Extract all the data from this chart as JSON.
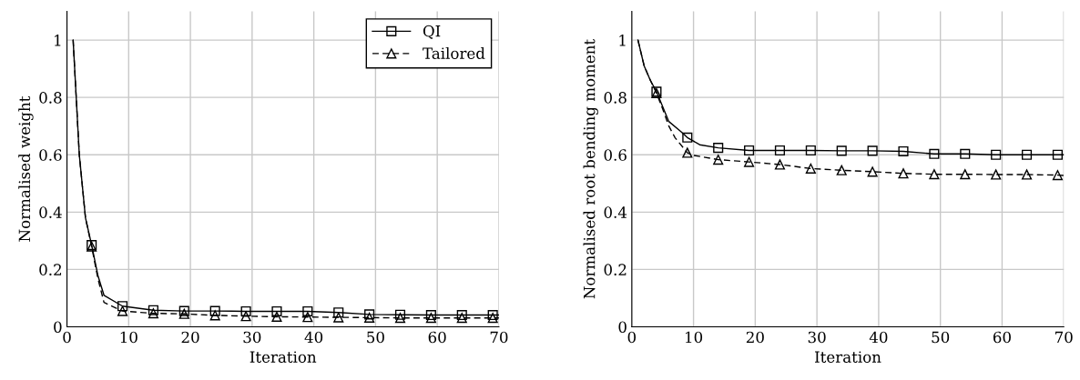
{
  "chart_data": [
    {
      "type": "line",
      "xlabel": "Iteration",
      "ylabel": "Normalised weight",
      "xlim": [
        0,
        70
      ],
      "ylim": [
        0,
        1.1
      ],
      "xticks": [
        0,
        10,
        20,
        30,
        40,
        50,
        60,
        70
      ],
      "yticks": [
        0,
        0.2,
        0.4,
        0.6,
        0.8,
        1
      ],
      "grid": true,
      "legend": "top right",
      "series": [
        {
          "name": "QI",
          "color": "#000000",
          "marker": "square",
          "line_style": "solid",
          "x": [
            1,
            2,
            3,
            4,
            5,
            6,
            9,
            14,
            19,
            24,
            29,
            34,
            39,
            44,
            49,
            54,
            59,
            64,
            69,
            70
          ],
          "values": [
            1.0,
            0.6,
            0.38,
            0.285,
            0.18,
            0.11,
            0.072,
            0.058,
            0.055,
            0.055,
            0.054,
            0.054,
            0.054,
            0.05,
            0.043,
            0.042,
            0.041,
            0.041,
            0.041,
            0.041
          ]
        },
        {
          "name": "Tailored",
          "color": "#000000",
          "marker": "triangle",
          "line_style": "dashed",
          "x": [
            1,
            2,
            3,
            4,
            5,
            6,
            9,
            14,
            19,
            24,
            29,
            34,
            39,
            44,
            49,
            54,
            59,
            64,
            69,
            70
          ],
          "values": [
            1.0,
            0.6,
            0.38,
            0.28,
            0.17,
            0.085,
            0.055,
            0.047,
            0.045,
            0.04,
            0.037,
            0.035,
            0.034,
            0.033,
            0.032,
            0.031,
            0.031,
            0.031,
            0.031,
            0.031
          ]
        }
      ]
    },
    {
      "type": "line",
      "xlabel": "Iteration",
      "ylabel": "Normalised root bending moment",
      "xlim": [
        0,
        70
      ],
      "ylim": [
        0,
        1.1
      ],
      "xticks": [
        0,
        10,
        20,
        30,
        40,
        50,
        60,
        70
      ],
      "yticks": [
        0,
        0.2,
        0.4,
        0.6,
        0.8,
        1
      ],
      "grid": true,
      "series": [
        {
          "color": "#000000",
          "marker": "square",
          "line_style": "solid",
          "x": [
            1,
            2,
            3,
            4,
            6,
            8,
            9,
            11,
            14,
            19,
            24,
            29,
            34,
            39,
            44,
            49,
            54,
            59,
            64,
            69,
            70
          ],
          "values": [
            1.0,
            0.91,
            0.86,
            0.82,
            0.716,
            0.68,
            0.66,
            0.635,
            0.624,
            0.615,
            0.615,
            0.615,
            0.614,
            0.614,
            0.612,
            0.603,
            0.603,
            0.6,
            0.6,
            0.6,
            0.6
          ]
        },
        {
          "color": "#000000",
          "marker": "triangle",
          "line_style": "dashed",
          "x": [
            1,
            2,
            3,
            4,
            5,
            6,
            7,
            9,
            10,
            14,
            19,
            24,
            29,
            34,
            39,
            44,
            49,
            54,
            59,
            64,
            69,
            70
          ],
          "values": [
            1.0,
            0.91,
            0.86,
            0.815,
            0.76,
            0.7,
            0.66,
            0.607,
            0.598,
            0.583,
            0.575,
            0.566,
            0.552,
            0.546,
            0.541,
            0.535,
            0.532,
            0.532,
            0.531,
            0.531,
            0.529,
            0.528
          ]
        }
      ]
    }
  ]
}
